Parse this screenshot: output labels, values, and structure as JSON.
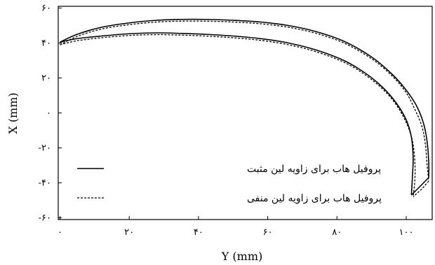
{
  "chart_data": {
    "type": "line",
    "xlabel": "Y (mm)",
    "ylabel": "X (mm)",
    "xlim": [
      -0.5,
      107.5
    ],
    "ylim": [
      -61,
      61
    ],
    "grid": false,
    "legend_position": "bottom-left",
    "x_ticks": [
      {
        "value": 0,
        "label": "۰"
      },
      {
        "value": 20,
        "label": "۲۰"
      },
      {
        "value": 40,
        "label": "۴۰"
      },
      {
        "value": 60,
        "label": "۶۰"
      },
      {
        "value": 80,
        "label": "۸۰"
      },
      {
        "value": 100,
        "label": "۱۰۰"
      }
    ],
    "y_ticks": [
      {
        "value": 60,
        "label": "۶۰"
      },
      {
        "value": 40,
        "label": "۴۰"
      },
      {
        "value": 20,
        "label": "۲۰"
      },
      {
        "value": 0,
        "label": "۰"
      },
      {
        "value": -20,
        "label": "-۲۰"
      },
      {
        "value": -40,
        "label": "-۴۰"
      },
      {
        "value": -60,
        "label": "-۶۰"
      }
    ],
    "series": [
      {
        "name": "پروفیل هاب برای زاویه لین مثبت",
        "style": "solid",
        "color": "#000000",
        "outer": {
          "x": [
            0,
            5,
            12,
            20,
            28,
            35,
            42,
            50,
            58,
            66,
            74,
            82,
            90,
            96,
            100,
            103,
            105,
            106,
            106.5,
            106.5
          ],
          "y": [
            40.5,
            45,
            49,
            51.5,
            53,
            53.5,
            53.5,
            53,
            52,
            50,
            46.5,
            41,
            32,
            22,
            13,
            4,
            -6,
            -16,
            -28,
            -37
          ]
        },
        "inner": {
          "x": [
            0,
            5,
            12,
            20,
            28,
            35,
            42,
            50,
            58,
            66,
            74,
            82,
            88,
            93,
            97,
            100,
            101.5,
            102,
            101.8,
            101.5
          ],
          "y": [
            40.5,
            42.5,
            44,
            45.3,
            45.8,
            45.5,
            45,
            44,
            42.5,
            40,
            36,
            30,
            23,
            15,
            6,
            -4,
            -14,
            -26,
            -36,
            -47
          ]
        },
        "tip": {
          "x": [
            106.5,
            104,
            101.5
          ],
          "y": [
            -37,
            -42,
            -47
          ]
        }
      },
      {
        "name": "پروفیل هاب برای زاویه لین منفی",
        "style": "dashed",
        "color": "#000000",
        "outer": {
          "x": [
            0,
            5,
            12,
            20,
            28,
            35,
            42,
            50,
            58,
            66,
            74,
            82,
            90,
            96,
            100,
            102.5,
            104.5,
            105.5,
            106,
            106.5
          ],
          "y": [
            39,
            43.8,
            48,
            50.5,
            52,
            52.5,
            52.5,
            52,
            51,
            49,
            45.5,
            40,
            31,
            21,
            11.5,
            2,
            -7.5,
            -17.5,
            -29,
            -39
          ]
        },
        "inner": {
          "x": [
            0,
            5,
            12,
            20,
            28,
            35,
            42,
            50,
            58,
            66,
            74,
            82,
            88,
            93,
            97,
            100,
            101.8,
            102.5,
            102.5,
            102
          ],
          "y": [
            39,
            41.3,
            43,
            44.3,
            44.8,
            44.5,
            44,
            43,
            41.5,
            39,
            35,
            29,
            22,
            14,
            5,
            -5.5,
            -16,
            -28,
            -38,
            -48
          ]
        },
        "tip": {
          "x": [
            106.5,
            104.5,
            102
          ],
          "y": [
            -39,
            -43.5,
            -48
          ]
        }
      }
    ]
  }
}
